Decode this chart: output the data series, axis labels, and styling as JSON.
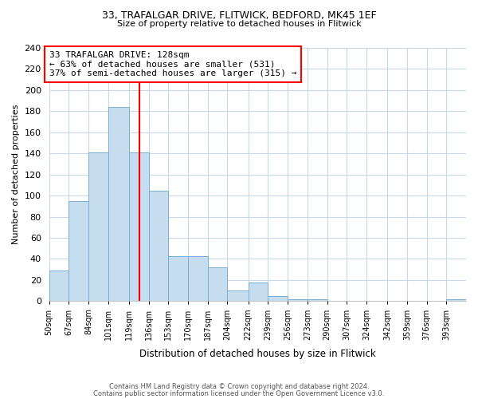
{
  "title1": "33, TRAFALGAR DRIVE, FLITWICK, BEDFORD, MK45 1EF",
  "title2": "Size of property relative to detached houses in Flitwick",
  "xlabel": "Distribution of detached houses by size in Flitwick",
  "ylabel": "Number of detached properties",
  "bin_labels": [
    "50sqm",
    "67sqm",
    "84sqm",
    "101sqm",
    "119sqm",
    "136sqm",
    "153sqm",
    "170sqm",
    "187sqm",
    "204sqm",
    "222sqm",
    "239sqm",
    "256sqm",
    "273sqm",
    "290sqm",
    "307sqm",
    "324sqm",
    "342sqm",
    "359sqm",
    "376sqm",
    "393sqm"
  ],
  "bin_edges": [
    50,
    67,
    84,
    101,
    119,
    136,
    153,
    170,
    187,
    204,
    222,
    239,
    256,
    273,
    290,
    307,
    324,
    342,
    359,
    376,
    393,
    410
  ],
  "bar_heights": [
    29,
    95,
    141,
    184,
    141,
    105,
    43,
    43,
    32,
    10,
    18,
    5,
    2,
    2,
    0,
    0,
    0,
    0,
    0,
    0,
    2
  ],
  "bar_color": "#c5ddef",
  "bar_edgecolor": "#7aafd4",
  "vline_x": 128,
  "vline_color": "red",
  "annotation_title": "33 TRAFALGAR DRIVE: 128sqm",
  "annotation_line1": "← 63% of detached houses are smaller (531)",
  "annotation_line2": "37% of semi-detached houses are larger (315) →",
  "box_color": "white",
  "box_edgecolor": "red",
  "ylim": [
    0,
    240
  ],
  "yticks": [
    0,
    20,
    40,
    60,
    80,
    100,
    120,
    140,
    160,
    180,
    200,
    220,
    240
  ],
  "footer1": "Contains HM Land Registry data © Crown copyright and database right 2024.",
  "footer2": "Contains public sector information licensed under the Open Government Licence v3.0."
}
